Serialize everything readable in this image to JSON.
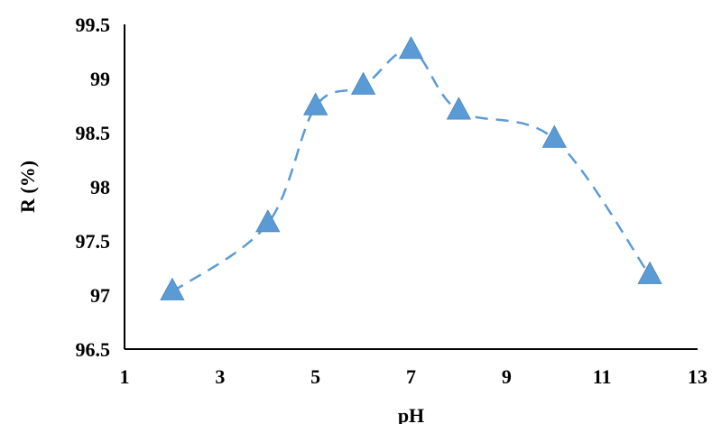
{
  "chart_data": {
    "type": "line",
    "title": "",
    "xlabel": "pH",
    "ylabel": "R (%)",
    "xlim": [
      1,
      13
    ],
    "ylim": [
      96.5,
      99.5
    ],
    "x_ticks": [
      "1",
      "3",
      "5",
      "7",
      "9",
      "11",
      "13"
    ],
    "y_ticks": [
      "96.5",
      "97",
      "97.5",
      "98",
      "98.5",
      "99",
      "99.5"
    ],
    "grid": false,
    "legend": "none",
    "series": [
      {
        "x": [
          2,
          4,
          5,
          6,
          7,
          8,
          10,
          12
        ],
        "y": [
          97.03,
          97.66,
          98.74,
          98.93,
          99.26,
          98.7,
          98.44,
          97.18
        ],
        "marker": "triangle",
        "line_style": "dashed-smooth",
        "color": "#5B9BD5"
      }
    ]
  }
}
